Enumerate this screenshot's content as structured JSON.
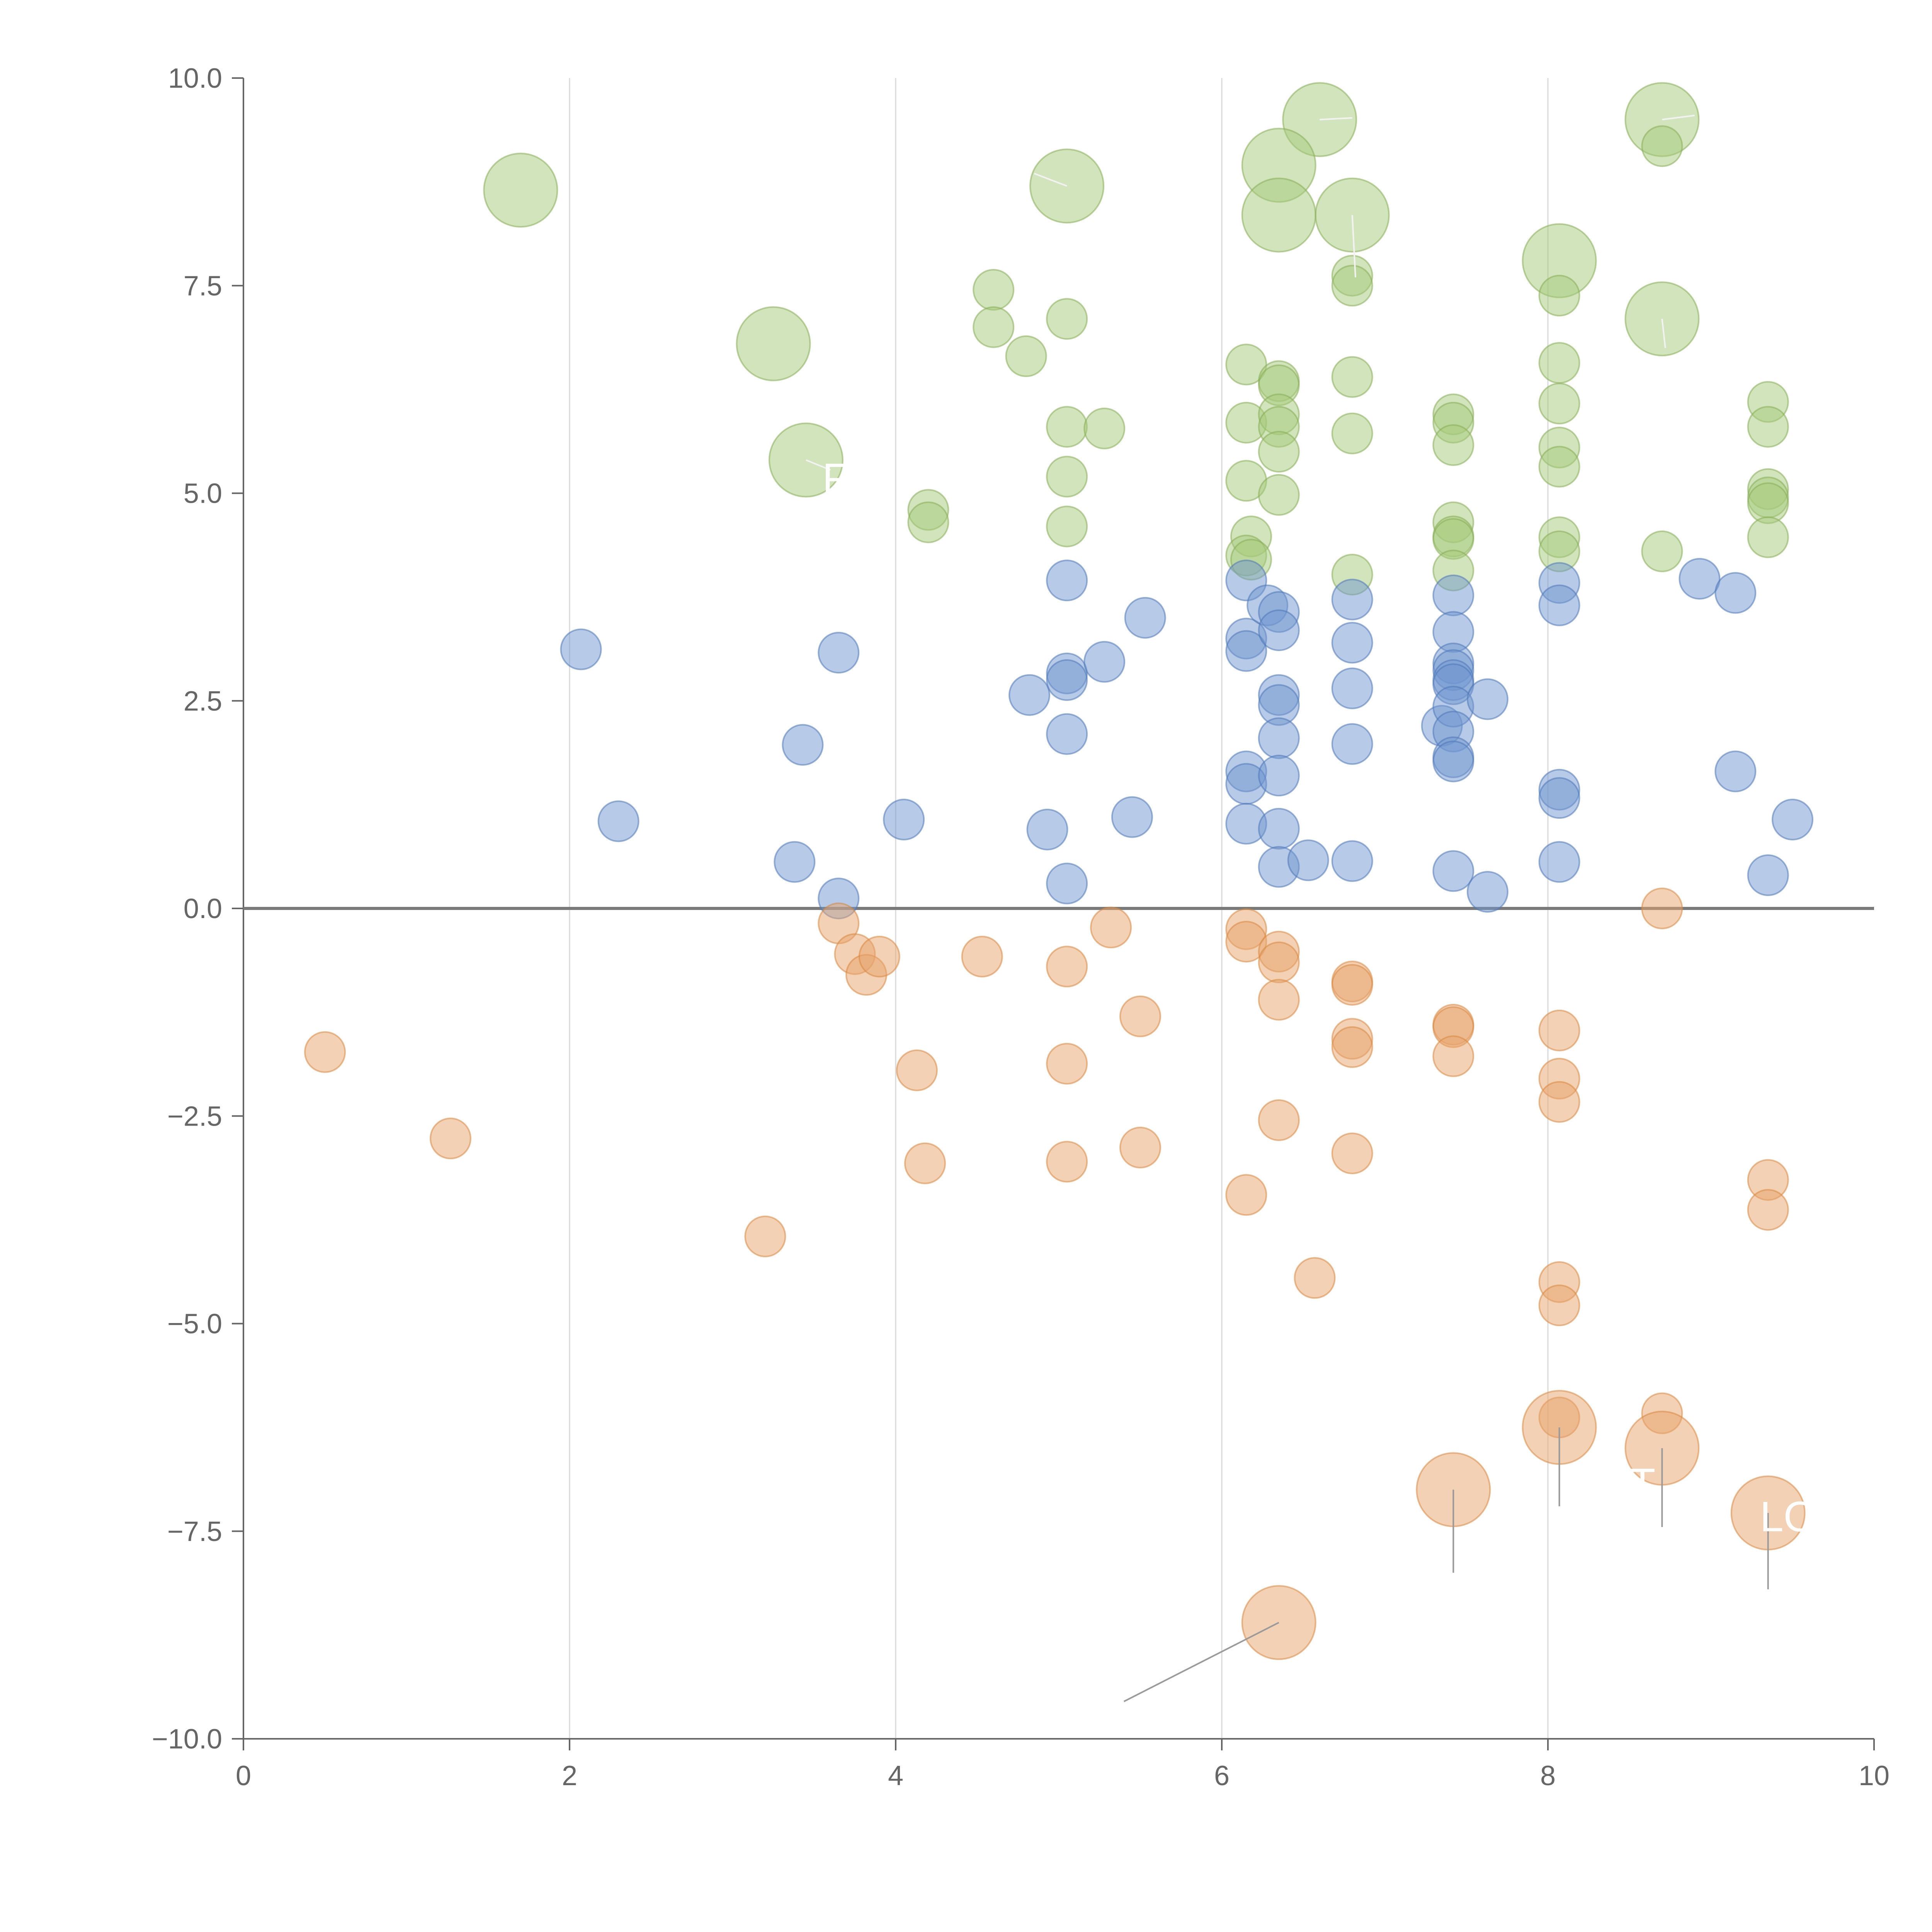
{
  "chart_data": {
    "type": "scatter",
    "title": "",
    "xlabel": "",
    "ylabel": "",
    "xlim": [
      0,
      10
    ],
    "ylim": [
      -10,
      10
    ],
    "x_ticks": [
      0,
      2,
      4,
      6,
      8,
      10
    ],
    "x_tick_labels": [
      "0",
      "2",
      "4",
      "6",
      "8",
      "10"
    ],
    "y_ticks": [
      10,
      7.5,
      5,
      2.5,
      0,
      -2.5,
      -5,
      -7.5,
      -10
    ],
    "y_tick_labels": [
      "10.0",
      "7.5",
      "5.0",
      "2.5",
      "0.0",
      "−2.5",
      "−5.0",
      "−7.5",
      "−10.0"
    ],
    "grid": "vertical",
    "zero_line": true,
    "colors": {
      "green": "#a6c97a",
      "blue": "#7096cf",
      "orange": "#e8a46b",
      "green_edge": "#86ad55",
      "blue_edge": "#4f78b8",
      "orange_edge": "#d98840",
      "leader_light": "#f2f2f2",
      "leader_dark": "#9a9a9a"
    },
    "series": [
      {
        "color": "green",
        "points": [
          [
            1.7,
            8.65,
            "l"
          ],
          [
            3.25,
            6.8,
            "l"
          ],
          [
            3.45,
            5.4,
            "l"
          ],
          [
            5.05,
            8.7,
            "l"
          ],
          [
            6.6,
            9.5,
            "l"
          ],
          [
            6.35,
            8.95,
            "l"
          ],
          [
            6.35,
            8.35,
            "l"
          ],
          [
            6.8,
            8.35,
            "l"
          ],
          [
            8.07,
            7.8,
            "l"
          ],
          [
            8.7,
            9.5,
            "l"
          ],
          [
            8.7,
            7.1,
            "l"
          ],
          [
            4.6,
            7.45,
            "s"
          ],
          [
            4.6,
            7.0,
            "s"
          ],
          [
            4.8,
            6.65,
            "s"
          ],
          [
            5.05,
            7.1,
            "s"
          ],
          [
            5.05,
            5.8,
            "s"
          ],
          [
            5.28,
            5.78,
            "s"
          ],
          [
            5.05,
            5.2,
            "s"
          ],
          [
            5.05,
            4.6,
            "s"
          ],
          [
            4.2,
            4.8,
            "s"
          ],
          [
            4.2,
            4.65,
            "s"
          ],
          [
            6.15,
            6.55,
            "s"
          ],
          [
            6.15,
            5.85,
            "s"
          ],
          [
            6.15,
            5.15,
            "s"
          ],
          [
            6.18,
            4.48,
            "s"
          ],
          [
            6.15,
            4.25,
            "s"
          ],
          [
            6.18,
            4.2,
            "s"
          ],
          [
            6.35,
            6.35,
            "s"
          ],
          [
            6.35,
            6.3,
            "s"
          ],
          [
            6.35,
            5.95,
            "s"
          ],
          [
            6.35,
            5.8,
            "s"
          ],
          [
            6.35,
            5.5,
            "s"
          ],
          [
            6.35,
            4.98,
            "s"
          ],
          [
            6.8,
            7.62,
            "s"
          ],
          [
            6.8,
            7.5,
            "s"
          ],
          [
            6.8,
            6.4,
            "s"
          ],
          [
            6.8,
            5.72,
            "s"
          ],
          [
            6.8,
            4.02,
            "s"
          ],
          [
            7.42,
            5.95,
            "s"
          ],
          [
            7.42,
            5.85,
            "s"
          ],
          [
            7.42,
            5.58,
            "s"
          ],
          [
            7.42,
            4.65,
            "s"
          ],
          [
            7.42,
            4.48,
            "s"
          ],
          [
            7.42,
            4.45,
            "s"
          ],
          [
            7.42,
            4.07,
            "s"
          ],
          [
            8.07,
            7.38,
            "s"
          ],
          [
            8.07,
            6.57,
            "s"
          ],
          [
            8.07,
            6.08,
            "s"
          ],
          [
            8.07,
            5.55,
            "s"
          ],
          [
            8.07,
            5.32,
            "s"
          ],
          [
            8.07,
            4.47,
            "s"
          ],
          [
            8.07,
            4.3,
            "s"
          ],
          [
            8.7,
            9.18,
            "s"
          ],
          [
            8.7,
            4.3,
            "s"
          ],
          [
            9.35,
            6.1,
            "s"
          ],
          [
            9.35,
            5.8,
            "s"
          ],
          [
            9.35,
            5.05,
            "s"
          ],
          [
            9.35,
            4.95,
            "s"
          ],
          [
            9.35,
            4.88,
            "s"
          ],
          [
            9.35,
            4.47,
            "s"
          ]
        ]
      },
      {
        "color": "blue",
        "points": [
          [
            2.07,
            3.12,
            "s"
          ],
          [
            2.3,
            1.05,
            "s"
          ],
          [
            3.38,
            0.56,
            "s"
          ],
          [
            3.43,
            1.97,
            "s"
          ],
          [
            3.65,
            3.08,
            "s"
          ],
          [
            3.65,
            0.12,
            "s"
          ],
          [
            4.05,
            1.07,
            "s"
          ],
          [
            4.82,
            2.57,
            "s"
          ],
          [
            4.93,
            0.95,
            "s"
          ],
          [
            5.05,
            3.95,
            "s"
          ],
          [
            5.05,
            2.83,
            "s"
          ],
          [
            5.05,
            2.75,
            "s"
          ],
          [
            5.05,
            2.1,
            "s"
          ],
          [
            5.05,
            0.3,
            "s"
          ],
          [
            5.28,
            2.97,
            "s"
          ],
          [
            5.45,
            1.1,
            "s"
          ],
          [
            5.53,
            3.5,
            "s"
          ],
          [
            6.15,
            3.95,
            "s"
          ],
          [
            6.15,
            3.25,
            "s"
          ],
          [
            6.15,
            3.1,
            "s"
          ],
          [
            6.15,
            1.65,
            "s"
          ],
          [
            6.15,
            1.5,
            "s"
          ],
          [
            6.15,
            1.02,
            "s"
          ],
          [
            6.28,
            3.65,
            "s"
          ],
          [
            6.35,
            3.57,
            "s"
          ],
          [
            6.35,
            3.35,
            "s"
          ],
          [
            6.35,
            2.57,
            "s"
          ],
          [
            6.35,
            2.45,
            "s"
          ],
          [
            6.35,
            2.05,
            "s"
          ],
          [
            6.35,
            1.6,
            "s"
          ],
          [
            6.35,
            0.96,
            "s"
          ],
          [
            6.35,
            0.5,
            "s"
          ],
          [
            6.53,
            0.58,
            "s"
          ],
          [
            6.8,
            3.72,
            "s"
          ],
          [
            6.8,
            3.2,
            "s"
          ],
          [
            6.8,
            2.65,
            "s"
          ],
          [
            6.8,
            1.98,
            "s"
          ],
          [
            6.8,
            0.57,
            "s"
          ],
          [
            7.35,
            2.2,
            "s"
          ],
          [
            7.42,
            3.77,
            "s"
          ],
          [
            7.42,
            3.33,
            "s"
          ],
          [
            7.42,
            2.95,
            "s"
          ],
          [
            7.42,
            2.87,
            "s"
          ],
          [
            7.42,
            2.75,
            "s"
          ],
          [
            7.42,
            2.7,
            "s"
          ],
          [
            7.42,
            2.43,
            "s"
          ],
          [
            7.42,
            2.13,
            "s"
          ],
          [
            7.42,
            1.82,
            "s"
          ],
          [
            7.42,
            1.77,
            "s"
          ],
          [
            7.42,
            0.45,
            "s"
          ],
          [
            7.63,
            2.52,
            "s"
          ],
          [
            7.63,
            0.2,
            "s"
          ],
          [
            8.07,
            3.92,
            "s"
          ],
          [
            8.07,
            3.65,
            "s"
          ],
          [
            8.07,
            1.43,
            "s"
          ],
          [
            8.07,
            1.33,
            "s"
          ],
          [
            8.07,
            0.56,
            "s"
          ],
          [
            8.93,
            3.97,
            "s"
          ],
          [
            9.15,
            3.8,
            "s"
          ],
          [
            9.15,
            1.65,
            "s"
          ],
          [
            9.35,
            0.4,
            "s"
          ],
          [
            9.5,
            1.07,
            "s"
          ]
        ]
      },
      {
        "color": "orange",
        "points": [
          [
            0.5,
            -1.73,
            "s"
          ],
          [
            1.27,
            -2.77,
            "s"
          ],
          [
            3.2,
            -3.95,
            "s"
          ],
          [
            3.65,
            -0.18,
            "s"
          ],
          [
            3.75,
            -0.55,
            "s"
          ],
          [
            3.82,
            -0.8,
            "s"
          ],
          [
            3.9,
            -0.58,
            "s"
          ],
          [
            4.13,
            -1.95,
            "s"
          ],
          [
            4.18,
            -3.07,
            "s"
          ],
          [
            4.53,
            -0.58,
            "s"
          ],
          [
            5.05,
            -0.7,
            "s"
          ],
          [
            5.05,
            -1.87,
            "s"
          ],
          [
            5.05,
            -3.05,
            "s"
          ],
          [
            5.32,
            -0.23,
            "s"
          ],
          [
            5.5,
            -1.3,
            "s"
          ],
          [
            5.5,
            -2.88,
            "s"
          ],
          [
            6.15,
            -0.25,
            "s"
          ],
          [
            6.15,
            -0.4,
            "s"
          ],
          [
            6.15,
            -3.45,
            "s"
          ],
          [
            6.35,
            -0.52,
            "s"
          ],
          [
            6.35,
            -0.65,
            "s"
          ],
          [
            6.35,
            -1.1,
            "s"
          ],
          [
            6.35,
            -2.55,
            "s"
          ],
          [
            6.57,
            -4.45,
            "s"
          ],
          [
            6.8,
            -0.88,
            "s"
          ],
          [
            6.8,
            -0.92,
            "s"
          ],
          [
            6.8,
            -1.57,
            "s"
          ],
          [
            6.8,
            -1.67,
            "s"
          ],
          [
            6.8,
            -2.95,
            "s"
          ],
          [
            7.42,
            -1.4,
            "s"
          ],
          [
            7.42,
            -1.43,
            "s"
          ],
          [
            7.42,
            -1.78,
            "s"
          ],
          [
            8.07,
            -1.47,
            "s"
          ],
          [
            8.07,
            -2.05,
            "s"
          ],
          [
            8.07,
            -2.33,
            "s"
          ],
          [
            8.07,
            -4.5,
            "s"
          ],
          [
            8.07,
            -4.78,
            "s"
          ],
          [
            8.07,
            -6.13,
            "s"
          ],
          [
            8.7,
            0.0,
            "s"
          ],
          [
            8.7,
            -6.08,
            "s"
          ],
          [
            9.35,
            -3.27,
            "s"
          ],
          [
            9.35,
            -3.63,
            "s"
          ],
          [
            6.35,
            -8.6,
            "l"
          ],
          [
            7.42,
            -7.0,
            "l"
          ],
          [
            8.07,
            -6.25,
            "l"
          ],
          [
            8.7,
            -6.5,
            "l"
          ],
          [
            9.35,
            -7.28,
            "l"
          ]
        ]
      }
    ],
    "leaders": [
      [
        6.6,
        9.5,
        6.8,
        9.52,
        "light"
      ],
      [
        8.7,
        9.5,
        8.9,
        9.55,
        "light"
      ],
      [
        5.05,
        8.7,
        4.85,
        8.85,
        "light"
      ],
      [
        6.8,
        8.35,
        6.82,
        7.6,
        "light"
      ],
      [
        8.7,
        7.1,
        8.72,
        6.75,
        "light"
      ],
      [
        3.45,
        5.4,
        3.6,
        5.28,
        "light"
      ],
      [
        6.35,
        -8.6,
        5.4,
        -9.55,
        "dark"
      ],
      [
        7.42,
        -7.0,
        7.42,
        -8.0,
        "dark"
      ],
      [
        8.07,
        -6.25,
        8.07,
        -7.2,
        "dark"
      ],
      [
        8.7,
        -6.5,
        8.7,
        -7.45,
        "dark"
      ],
      [
        9.35,
        -7.28,
        9.35,
        -8.2,
        "dark"
      ]
    ],
    "overlay_labels": [
      {
        "text": "F",
        "x": 3.55,
        "y": 5.0
      },
      {
        "text": "T",
        "x": 8.5,
        "y": -7.1
      },
      {
        "text": "LO",
        "x": 9.3,
        "y": -7.5
      }
    ]
  }
}
